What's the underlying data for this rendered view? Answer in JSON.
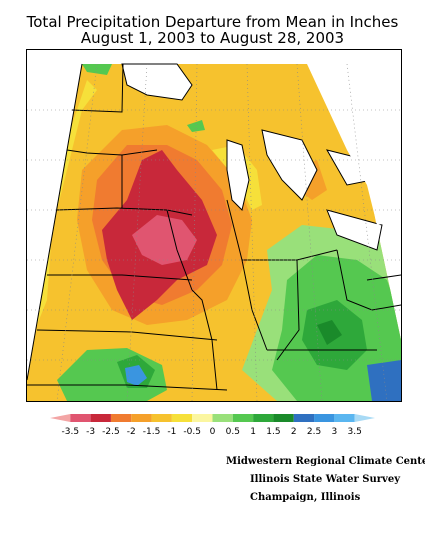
{
  "title": {
    "line1": "Total Precipitation Departure from Mean in Inches",
    "line2": "August 1, 2003 to August 28, 2003"
  },
  "legend": {
    "labels": [
      "-3.5",
      "-3",
      "-2.5",
      "-2",
      "-1.5",
      "-1",
      "-0.5",
      "0",
      "0.5",
      "1",
      "1.5",
      "2",
      "2.5",
      "3",
      "3.5"
    ],
    "colors": [
      "#f3a5a5",
      "#e05570",
      "#c8283a",
      "#f07b30",
      "#f5a02a",
      "#f6c22e",
      "#f6e03a",
      "#fbf6a0",
      "#99e07a",
      "#55c850",
      "#2ea83a",
      "#1a8a2a",
      "#2f70c0",
      "#3a95e0",
      "#5ab6f0",
      "#a8daf5"
    ]
  },
  "credits": {
    "line1": "Midwestern Regional Climate Center",
    "line2": "Illinois State Water Survey",
    "line3": "Champaign, Illinois"
  },
  "colors": {
    "water": "#ffffff",
    "outside": "#ffffff"
  }
}
